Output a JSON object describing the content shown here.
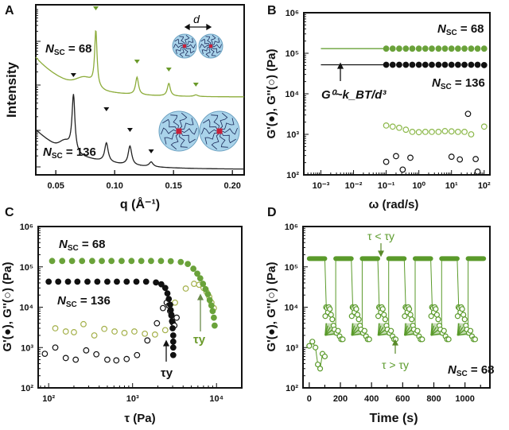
{
  "colors": {
    "green": "#5a9a2a",
    "green_light": "#8cb84a",
    "olive": "#a4b04a",
    "black": "#111111",
    "sphere": "#a9d3ea",
    "core": "#c8203a"
  },
  "chart_data": [
    {
      "panel": "A",
      "type": "line",
      "xlabel": "q (Å⁻¹)",
      "ylabel": "Intensity",
      "xlim": [
        0.033,
        0.21
      ],
      "yscale": "log (arbitrary, offset)",
      "x_ticks": [
        "0.05",
        "0.10",
        "0.15",
        "0.20"
      ],
      "series": [
        {
          "name": "N_SC = 68",
          "label_main": "N",
          "label_sub": "SC",
          "label_rest": " = 68",
          "color": "green",
          "peaks_q": [
            0.084,
            0.119,
            0.146,
            0.169
          ]
        },
        {
          "name": "N_SC = 136",
          "label_main": "N",
          "label_sub": "SC",
          "label_rest": " = 136",
          "color": "black",
          "peaks_q": [
            0.065,
            0.093,
            0.113,
            0.131
          ]
        }
      ],
      "annotation": "d"
    },
    {
      "panel": "B",
      "type": "scatter",
      "xlabel": "ω (rad/s)",
      "ylabel": "G'(●), G''(○) (Pa)",
      "xscale": "log",
      "yscale": "log",
      "xlim": [
        0.0003,
        150
      ],
      "ylim": [
        100,
        1000000
      ],
      "x_ticks": [
        "10⁻³",
        "10⁻²",
        "10⁻¹",
        "10⁰",
        "10¹",
        "10²"
      ],
      "y_ticks": [
        "10²",
        "10³",
        "10⁴",
        "10⁵",
        "10⁶"
      ],
      "annotation": "G⁰~k_BT/d³",
      "series": [
        {
          "name": "N_SC = 68 G'",
          "filled": true,
          "color": "green",
          "line_from": 0.001,
          "line_value": 130000,
          "x": [
            0.1,
            0.158,
            0.25,
            0.4,
            0.63,
            1,
            1.58,
            2.5,
            4,
            6.3,
            10,
            15.8,
            25,
            40,
            63,
            100
          ],
          "y": [
            130000,
            130000,
            130000,
            130000,
            130000,
            130000,
            130000,
            130000,
            130000,
            130000,
            130000,
            130000,
            130000,
            130000,
            130000,
            130000
          ]
        },
        {
          "name": "N_SC = 136 G'",
          "filled": true,
          "color": "black",
          "line_from": 0.001,
          "line_value": 52000,
          "x": [
            0.1,
            0.158,
            0.25,
            0.4,
            0.63,
            1,
            1.58,
            2.5,
            4,
            6.3,
            10,
            15.8,
            25,
            40,
            63,
            100
          ],
          "y": [
            52000,
            52000,
            52000,
            52000,
            52000,
            52000,
            52000,
            52000,
            52000,
            52000,
            52000,
            52000,
            52000,
            52000,
            52000,
            51000
          ]
        },
        {
          "name": "N_SC = 68 G''",
          "filled": false,
          "color": "green_light",
          "x": [
            0.1,
            0.158,
            0.25,
            0.4,
            0.63,
            1,
            1.58,
            2.5,
            4,
            6.3,
            10,
            15.8,
            25,
            40,
            100
          ],
          "y": [
            1650,
            1550,
            1450,
            1300,
            1150,
            1130,
            1150,
            1150,
            1150,
            1200,
            1180,
            1150,
            1150,
            1000,
            1550
          ]
        },
        {
          "name": "N_SC = 136 G''",
          "filled": false,
          "color": "black",
          "x": [
            0.1,
            0.2,
            0.32,
            0.55,
            10,
            18,
            32,
            55,
            63
          ],
          "y": [
            210,
            290,
            135,
            265,
            280,
            240,
            3200,
            245,
            120
          ]
        }
      ],
      "labels": [
        {
          "main": "N",
          "sub": "SC",
          "rest": " = 68",
          "color": "green"
        },
        {
          "main": "N",
          "sub": "SC",
          "rest": " = 136",
          "color": "black"
        }
      ]
    },
    {
      "panel": "C",
      "type": "scatter",
      "xlabel": "τ (Pa)",
      "ylabel": "G'(●), G''(○) (Pa)",
      "xscale": "log",
      "yscale": "log",
      "xlim": [
        75,
        20000
      ],
      "ylim": [
        100,
        1000000
      ],
      "x_ticks": [
        "10²",
        "10³",
        "10⁴"
      ],
      "y_ticks": [
        "10²",
        "10³",
        "10⁴",
        "10⁵",
        "10⁶"
      ],
      "annotations": [
        "τy",
        "τy"
      ],
      "series": [
        {
          "name": "N_SC = 68 G'",
          "filled": true,
          "color": "green",
          "x": [
            110,
            145,
            190,
            250,
            330,
            430,
            560,
            740,
            970,
            1270,
            1660,
            2180,
            2850,
            3750,
            4550,
            5300,
            5900,
            6400,
            6900,
            7400,
            7900,
            8300,
            8700,
            9000,
            9300,
            9500
          ],
          "y": [
            140000,
            140000,
            140000,
            140000,
            140000,
            140000,
            140000,
            140000,
            140000,
            140000,
            140000,
            140000,
            138000,
            132000,
            118000,
            90000,
            68000,
            52000,
            38000,
            28000,
            21000,
            15000,
            11000,
            8000,
            5500,
            3500
          ]
        },
        {
          "name": "N_SC = 136 G'",
          "filled": true,
          "color": "black",
          "x": [
            100,
            130,
            170,
            220,
            290,
            380,
            500,
            650,
            850,
            1110,
            1450,
            1900,
            2200,
            2450,
            2600,
            2700,
            2800,
            2850,
            2900,
            2950,
            3000,
            3050,
            3050,
            3050,
            3050
          ],
          "y": [
            43000,
            43000,
            43000,
            43000,
            43000,
            43000,
            43000,
            43000,
            43000,
            43000,
            43000,
            41000,
            37000,
            30000,
            22000,
            16000,
            11500,
            8500,
            6200,
            4500,
            3000,
            2000,
            1400,
            1000,
            650
          ]
        },
        {
          "name": "N_SC = 68 G''",
          "filled": false,
          "color": "olive",
          "x": [
            120,
            160,
            200,
            260,
            350,
            460,
            610,
            800,
            1050,
            1400,
            1850,
            2450,
            3200,
            4300,
            5400,
            6200,
            7000,
            7600,
            8200,
            8700,
            9300
          ],
          "y": [
            3000,
            2500,
            2400,
            3800,
            2000,
            2900,
            2500,
            2300,
            2500,
            2200,
            2100,
            2700,
            13000,
            29000,
            38000,
            36000,
            30000,
            24000,
            18000,
            13000,
            9500
          ]
        },
        {
          "name": "N_SC = 136 G''",
          "filled": false,
          "color": "black",
          "x": [
            90,
            120,
            160,
            210,
            280,
            370,
            500,
            640,
            850,
            1130,
            1500,
            1950,
            2300,
            2550,
            2700,
            2800,
            2900,
            3000,
            3150,
            3350
          ],
          "y": [
            700,
            1000,
            550,
            500,
            850,
            680,
            500,
            480,
            520,
            650,
            1500,
            4000,
            9500,
            13000,
            11000,
            8000,
            6500,
            4200,
            3500,
            5500
          ]
        }
      ]
    },
    {
      "panel": "D",
      "type": "line",
      "xlabel": "Time (s)",
      "ylabel": "G'(●), G''(○) (Pa)",
      "yscale": "log",
      "xlim": [
        -40,
        1160
      ],
      "ylim": [
        100,
        1000000
      ],
      "x_ticks": [
        "0",
        "200",
        "400",
        "600",
        "800",
        "1000"
      ],
      "y_ticks": [
        "10²",
        "10³",
        "10⁴",
        "10⁵",
        "10⁶"
      ],
      "annotations": [
        "τ < τy",
        "τ > τy"
      ],
      "label": {
        "main": "N",
        "sub": "SC",
        "rest": " = 68"
      },
      "series": [
        {
          "name": "G' plateau (τ < τy)",
          "filled": true,
          "value": 160000,
          "intervals": [
            [
              0,
              100
            ],
            [
              170,
              270
            ],
            [
              340,
              440
            ],
            [
              510,
              610
            ],
            [
              680,
              780
            ],
            [
              850,
              950
            ],
            [
              1020,
              1120
            ]
          ]
        },
        {
          "name": "G'' low-stress start",
          "filled": false,
          "t": [
            0,
            20,
            40,
            55,
            70,
            85,
            100
          ],
          "y": [
            1100,
            1400,
            1000,
            380,
            300,
            700,
            600
          ]
        },
        {
          "name": "oscillation cycles (τ > τy)",
          "filled": false,
          "cycle_starts": [
            100,
            270,
            440,
            610,
            780,
            950
          ],
          "high_peak": 10000,
          "low": 1500
        }
      ]
    }
  ],
  "panels": {
    "A": "A",
    "B": "B",
    "C": "C",
    "D": "D"
  }
}
